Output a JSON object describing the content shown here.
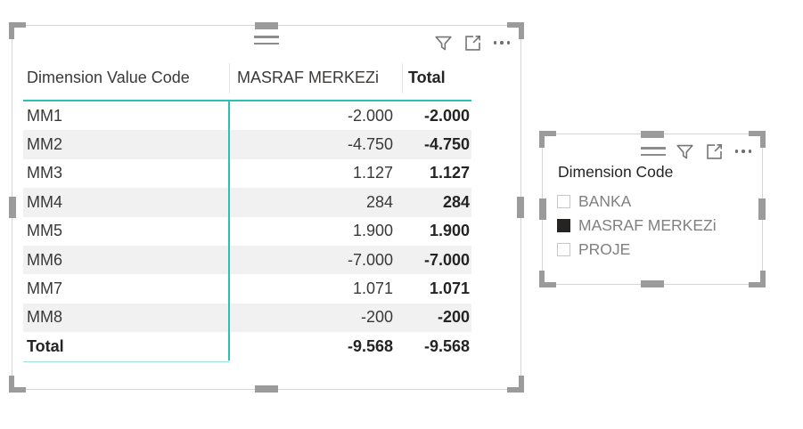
{
  "colors": {
    "accent_teal": "#2cbfb4",
    "row_stripe": "#f2f1f1",
    "text_dark": "#252423",
    "slicer_item_text": "#808080",
    "handle_gray": "#9b9b9b"
  },
  "table_visual": {
    "columns": [
      "Dimension Value Code",
      "MASRAF MERKEZi",
      "Total"
    ],
    "rows": [
      {
        "code": "MM1",
        "value": "-2.000",
        "total": "-2.000"
      },
      {
        "code": "MM2",
        "value": "-4.750",
        "total": "-4.750"
      },
      {
        "code": "MM3",
        "value": "1.127",
        "total": "1.127"
      },
      {
        "code": "MM4",
        "value": "284",
        "total": "284"
      },
      {
        "code": "MM5",
        "value": "1.900",
        "total": "1.900"
      },
      {
        "code": "MM6",
        "value": "-7.000",
        "total": "-7.000"
      },
      {
        "code": "MM7",
        "value": "1.071",
        "total": "1.071"
      },
      {
        "code": "MM8",
        "value": "-200",
        "total": "-200"
      }
    ],
    "total_row": {
      "code": "Total",
      "value": "-9.568",
      "total": "-9.568"
    }
  },
  "slicer_visual": {
    "title": "Dimension Code",
    "items": [
      {
        "label": "BANKA",
        "checked": false
      },
      {
        "label": "MASRAF MERKEZi",
        "checked": true
      },
      {
        "label": "PROJE",
        "checked": false
      }
    ]
  }
}
